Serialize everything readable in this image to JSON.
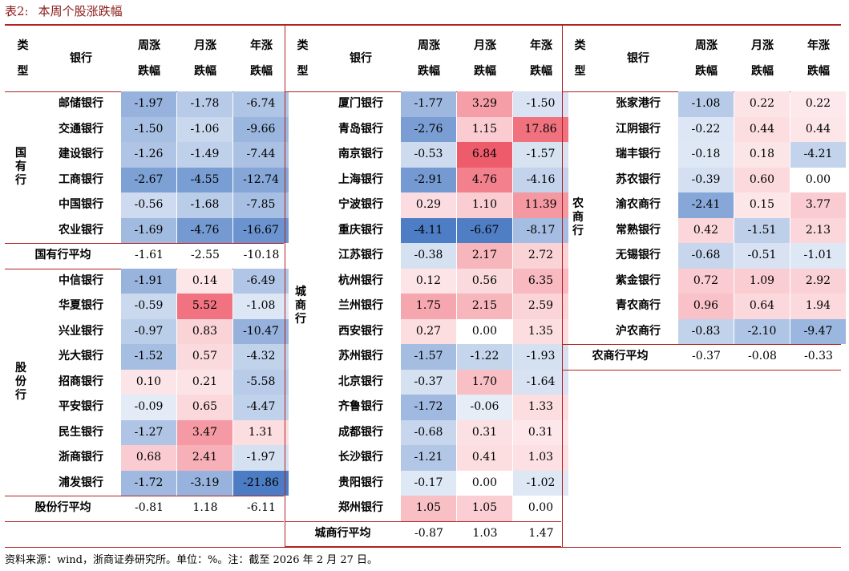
{
  "table_title": {
    "label": "表2:",
    "text": "本周个股涨跌幅"
  },
  "headers": {
    "type_top": "类",
    "type_bottom": "型",
    "bank": "银行",
    "week_top": "周涨",
    "week_bottom": "跌幅",
    "month_top": "月涨",
    "month_bottom": "跌幅",
    "year_top": "年涨",
    "year_bottom": "跌幅"
  },
  "panel1": {
    "groups": [
      {
        "label": "国有行",
        "rows": [
          {
            "bank": "邮储银行",
            "week": "-1.97",
            "month": "-1.78",
            "year": "-6.74"
          },
          {
            "bank": "交通银行",
            "week": "-1.50",
            "month": "-1.06",
            "year": "-9.66"
          },
          {
            "bank": "建设银行",
            "week": "-1.26",
            "month": "-1.49",
            "year": "-7.44"
          },
          {
            "bank": "工商银行",
            "week": "-2.67",
            "month": "-4.55",
            "year": "-12.74"
          },
          {
            "bank": "中国银行",
            "week": "-0.56",
            "month": "-1.68",
            "year": "-7.85"
          },
          {
            "bank": "农业银行",
            "week": "-1.69",
            "month": "-4.76",
            "year": "-16.67"
          }
        ],
        "avg": {
          "bank": "国有行平均",
          "week": "-1.61",
          "month": "-2.55",
          "year": "-10.18"
        }
      },
      {
        "label": "股份行",
        "rows": [
          {
            "bank": "中信银行",
            "week": "-1.91",
            "month": "0.14",
            "year": "-6.49"
          },
          {
            "bank": "华夏银行",
            "week": "-0.59",
            "month": "5.52",
            "year": "-1.08"
          },
          {
            "bank": "兴业银行",
            "week": "-0.97",
            "month": "0.83",
            "year": "-10.47"
          },
          {
            "bank": "光大银行",
            "week": "-1.52",
            "month": "0.57",
            "year": "-4.32"
          },
          {
            "bank": "招商银行",
            "week": "0.10",
            "month": "0.21",
            "year": "-5.58"
          },
          {
            "bank": "平安银行",
            "week": "-0.09",
            "month": "0.65",
            "year": "-4.47"
          },
          {
            "bank": "民生银行",
            "week": "-1.27",
            "month": "3.47",
            "year": "1.31"
          },
          {
            "bank": "浙商银行",
            "week": "0.68",
            "month": "2.41",
            "year": "-1.97"
          },
          {
            "bank": "浦发银行",
            "week": "-1.72",
            "month": "-3.19",
            "year": "-21.86"
          }
        ],
        "avg": {
          "bank": "股份行平均",
          "week": "-0.81",
          "month": "1.18",
          "year": "-6.11"
        }
      }
    ]
  },
  "panel2": {
    "groups": [
      {
        "label": "城商行",
        "rows": [
          {
            "bank": "厦门银行",
            "week": "-1.77",
            "month": "3.29",
            "year": "-1.50"
          },
          {
            "bank": "青岛银行",
            "week": "-2.76",
            "month": "1.15",
            "year": "17.86"
          },
          {
            "bank": "南京银行",
            "week": "-0.53",
            "month": "6.84",
            "year": "-1.57"
          },
          {
            "bank": "上海银行",
            "week": "-2.91",
            "month": "4.76",
            "year": "-4.16"
          },
          {
            "bank": "宁波银行",
            "week": "0.29",
            "month": "1.10",
            "year": "11.39"
          },
          {
            "bank": "重庆银行",
            "week": "-4.11",
            "month": "-6.67",
            "year": "-8.17"
          },
          {
            "bank": "江苏银行",
            "week": "-0.38",
            "month": "2.17",
            "year": "2.72"
          },
          {
            "bank": "杭州银行",
            "week": "0.12",
            "month": "0.56",
            "year": "6.35"
          },
          {
            "bank": "兰州银行",
            "week": "1.75",
            "month": "2.15",
            "year": "2.59"
          },
          {
            "bank": "西安银行",
            "week": "0.27",
            "month": "0.00",
            "year": "1.35"
          },
          {
            "bank": "苏州银行",
            "week": "-1.57",
            "month": "-1.22",
            "year": "-1.93"
          },
          {
            "bank": "北京银行",
            "week": "-0.37",
            "month": "1.70",
            "year": "-1.64"
          },
          {
            "bank": "齐鲁银行",
            "week": "-1.72",
            "month": "-0.06",
            "year": "1.33"
          },
          {
            "bank": "成都银行",
            "week": "-0.68",
            "month": "0.31",
            "year": "0.31"
          },
          {
            "bank": "长沙银行",
            "week": "-1.21",
            "month": "0.41",
            "year": "1.03"
          },
          {
            "bank": "贵阳银行",
            "week": "-0.17",
            "month": "0.00",
            "year": "-1.02"
          },
          {
            "bank": "郑州银行",
            "week": "1.05",
            "month": "1.05",
            "year": "0.00"
          }
        ],
        "avg": {
          "bank": "城商行平均",
          "week": "-0.87",
          "month": "1.03",
          "year": "1.47"
        }
      }
    ]
  },
  "panel3": {
    "groups": [
      {
        "label": "农商行",
        "rows": [
          {
            "bank": "张家港行",
            "week": "-1.08",
            "month": "0.22",
            "year": "0.22"
          },
          {
            "bank": "江阴银行",
            "week": "-0.22",
            "month": "0.44",
            "year": "0.44"
          },
          {
            "bank": "瑞丰银行",
            "week": "-0.18",
            "month": "0.18",
            "year": "-4.21"
          },
          {
            "bank": "苏农银行",
            "week": "-0.39",
            "month": "0.60",
            "year": "0.00"
          },
          {
            "bank": "渝农商行",
            "week": "-2.41",
            "month": "0.15",
            "year": "3.77"
          },
          {
            "bank": "常熟银行",
            "week": "0.42",
            "month": "-1.51",
            "year": "2.13"
          },
          {
            "bank": "无锡银行",
            "week": "-0.68",
            "month": "-0.51",
            "year": "-1.01"
          },
          {
            "bank": "紫金银行",
            "week": "0.72",
            "month": "1.09",
            "year": "2.92"
          },
          {
            "bank": "青农商行",
            "week": "0.96",
            "month": "0.64",
            "year": "1.94"
          },
          {
            "bank": "沪农商行",
            "week": "-0.83",
            "month": "-2.10",
            "year": "-9.47"
          }
        ],
        "avg": {
          "bank": "农商行平均",
          "week": "-0.37",
          "month": "-0.08",
          "year": "-0.33"
        }
      }
    ]
  },
  "heat_colors": {
    "negative": "#4a7bc4",
    "positive": "#ee5a6a",
    "neutral": "#ffffff"
  },
  "footnote": "资料来源：wind，浙商证券研究所。单位：%。注：截至 2026 年 2 月 27 日。"
}
